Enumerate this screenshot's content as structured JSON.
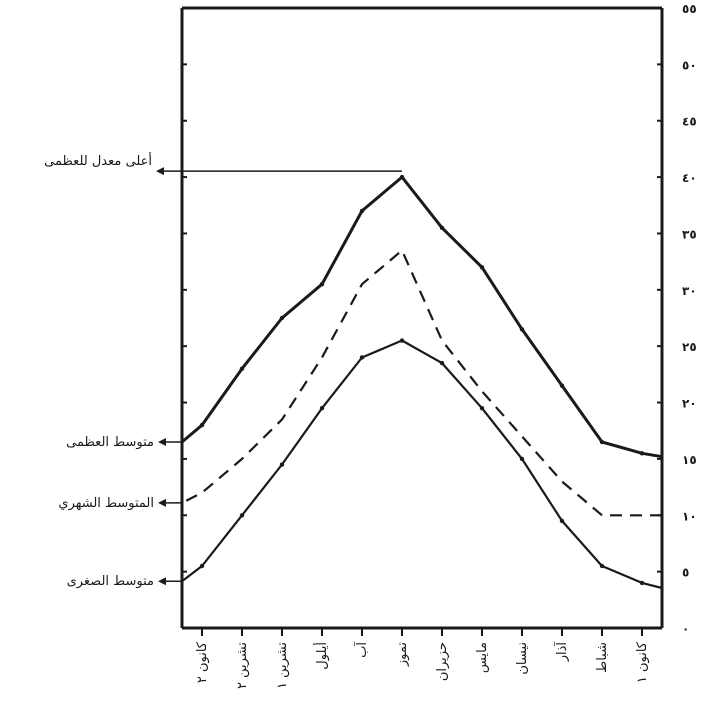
{
  "chart_data": {
    "type": "line",
    "categories": [
      "كانون ١",
      "شباط",
      "آذار",
      "نيسان",
      "مايس",
      "حزيران",
      "تموز",
      "آب",
      "أيلول",
      "تشرين ١",
      "تشرين ٢",
      "كانون ٢"
    ],
    "x_order": "right-to-left",
    "y_ticks": [
      "٠",
      "٥",
      "١٠",
      "١٥",
      "٢٠",
      "٢٥",
      "٣٠",
      "٣٥",
      "٤٠",
      "٤٥",
      "٥٠",
      "٥٥"
    ],
    "ylim": [
      0,
      55
    ],
    "series": [
      {
        "name": "متوسط العظمى",
        "style": "solid",
        "values": [
          15.5,
          16.5,
          21.5,
          26.5,
          32,
          35.5,
          40,
          37,
          30.5,
          27.5,
          23,
          18
        ]
      },
      {
        "name": "المتوسط الشهري",
        "style": "dashed",
        "values": [
          10,
          10,
          13,
          17,
          21,
          25.5,
          33.5,
          30.5,
          24,
          18.5,
          15,
          12
        ]
      },
      {
        "name": "متوسط الصغرى",
        "style": "solid",
        "values": [
          4,
          5.5,
          9.5,
          15,
          19.5,
          23.5,
          25.5,
          24,
          19.5,
          14.5,
          10,
          5.5
        ]
      }
    ],
    "annotation": {
      "text": "أعلى معدل للعظمى",
      "value": 40
    },
    "colors": {
      "line": "#1a1a1a",
      "frame": "#1a1a1a"
    }
  }
}
